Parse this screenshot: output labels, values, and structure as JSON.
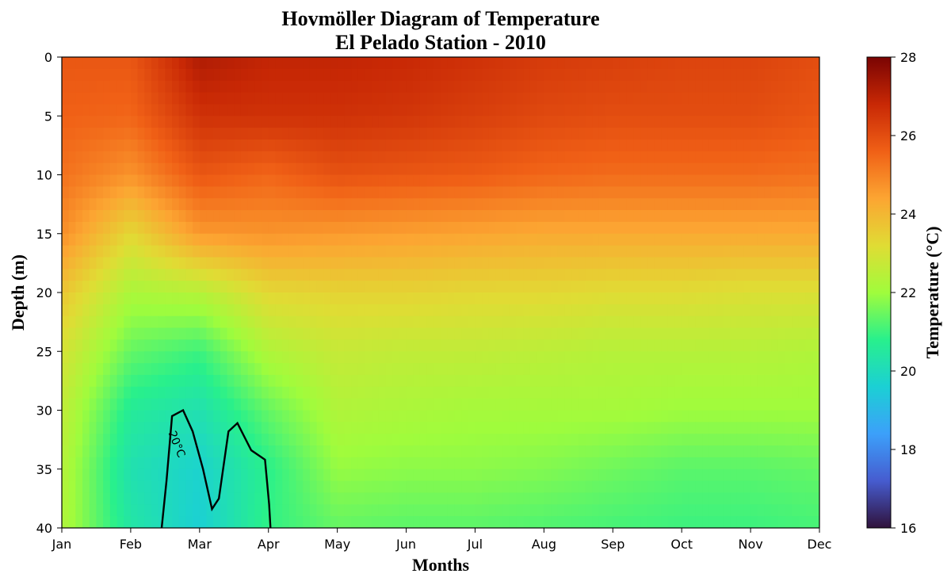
{
  "chart_data": {
    "type": "heatmap",
    "title": "Hovmöller Diagram of Temperature",
    "subtitle": "El Pelado Station - 2010",
    "xlabel": "Months",
    "ylabel": "Depth (m)",
    "x_categories": [
      "Jan",
      "Feb",
      "Mar",
      "Apr",
      "May",
      "Jun",
      "Jul",
      "Aug",
      "Sep",
      "Oct",
      "Nov",
      "Dec"
    ],
    "y_ticks": [
      0,
      5,
      10,
      15,
      20,
      25,
      30,
      35,
      40
    ],
    "ylim": [
      40,
      0
    ],
    "y_inverted": true,
    "colorbar": {
      "label": "Temperature (°C)",
      "range": [
        16,
        28
      ],
      "ticks": [
        16,
        18,
        20,
        22,
        24,
        26,
        28
      ],
      "colormap": "turbo"
    },
    "contour": {
      "level": 20,
      "label": "20°C",
      "color": "#000000"
    },
    "sampled_temperature_grid": {
      "depths_m": [
        0,
        5,
        10,
        15,
        20,
        25,
        30,
        35,
        40
      ],
      "months": [
        "Jan",
        "Feb",
        "Mar",
        "Apr",
        "May",
        "Jun",
        "Jul",
        "Aug",
        "Sep",
        "Oct",
        "Nov",
        "Dec"
      ],
      "values_c": [
        [
          25.8,
          25.8,
          27.2,
          26.9,
          26.9,
          26.8,
          26.6,
          26.4,
          26.3,
          26.2,
          26.2,
          26.0
        ],
        [
          25.6,
          25.5,
          26.6,
          26.6,
          26.6,
          26.5,
          26.3,
          26.1,
          26.0,
          26.0,
          26.0,
          25.8
        ],
        [
          25.3,
          24.7,
          25.8,
          25.5,
          25.9,
          25.8,
          25.7,
          25.5,
          25.4,
          25.4,
          25.4,
          25.3
        ],
        [
          24.8,
          23.3,
          24.6,
          24.7,
          24.6,
          24.5,
          24.4,
          24.3,
          24.3,
          24.3,
          24.3,
          24.3
        ],
        [
          23.7,
          22.2,
          22.4,
          23.3,
          23.4,
          23.4,
          23.3,
          23.3,
          23.2,
          23.2,
          23.1,
          23.1
        ],
        [
          23.0,
          21.4,
          21.0,
          22.3,
          22.7,
          22.6,
          22.6,
          22.5,
          22.4,
          22.4,
          22.4,
          22.3
        ],
        [
          22.6,
          20.6,
          20.2,
          21.4,
          22.3,
          22.2,
          22.1,
          22.1,
          22.1,
          22.0,
          22.0,
          22.0
        ],
        [
          22.4,
          20.2,
          19.7,
          20.8,
          21.9,
          21.8,
          21.8,
          21.7,
          21.5,
          21.3,
          21.3,
          21.4
        ],
        [
          22.3,
          20.4,
          19.6,
          20.9,
          21.4,
          21.3,
          21.3,
          21.2,
          21.1,
          21.0,
          21.0,
          21.1
        ]
      ]
    }
  }
}
